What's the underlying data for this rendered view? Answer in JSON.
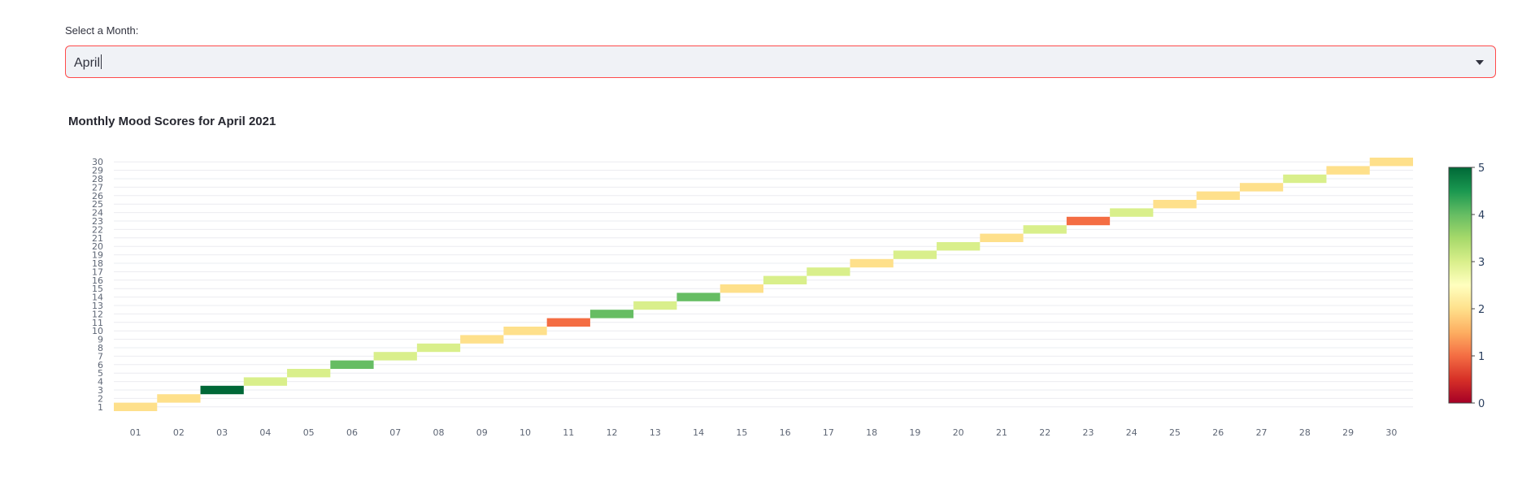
{
  "month_select": {
    "label": "Select a Month:",
    "value": "April"
  },
  "chart_data": {
    "type": "heatmap",
    "title": "Monthly Mood Scores for April 2021",
    "xlabel": "",
    "ylabel": "",
    "x_categories": [
      "01",
      "02",
      "03",
      "04",
      "05",
      "06",
      "07",
      "08",
      "09",
      "10",
      "11",
      "12",
      "13",
      "14",
      "15",
      "16",
      "17",
      "18",
      "19",
      "20",
      "21",
      "22",
      "23",
      "24",
      "25",
      "26",
      "27",
      "28",
      "29",
      "30"
    ],
    "y_categories": [
      "1",
      "2",
      "3",
      "4",
      "5",
      "6",
      "7",
      "8",
      "9",
      "10",
      "11",
      "12",
      "13",
      "14",
      "15",
      "16",
      "17",
      "18",
      "19",
      "20",
      "21",
      "22",
      "23",
      "24",
      "25",
      "26",
      "27",
      "28",
      "29",
      "30"
    ],
    "cells": [
      {
        "x": "01",
        "y": "1",
        "value": 2
      },
      {
        "x": "02",
        "y": "2",
        "value": 2
      },
      {
        "x": "03",
        "y": "3",
        "value": 5
      },
      {
        "x": "04",
        "y": "4",
        "value": 3
      },
      {
        "x": "05",
        "y": "5",
        "value": 3
      },
      {
        "x": "06",
        "y": "6",
        "value": 4
      },
      {
        "x": "07",
        "y": "7",
        "value": 3
      },
      {
        "x": "08",
        "y": "8",
        "value": 3
      },
      {
        "x": "09",
        "y": "9",
        "value": 2
      },
      {
        "x": "10",
        "y": "10",
        "value": 2
      },
      {
        "x": "11",
        "y": "11",
        "value": 1
      },
      {
        "x": "12",
        "y": "12",
        "value": 4
      },
      {
        "x": "13",
        "y": "13",
        "value": 3
      },
      {
        "x": "14",
        "y": "14",
        "value": 4
      },
      {
        "x": "15",
        "y": "15",
        "value": 2
      },
      {
        "x": "16",
        "y": "16",
        "value": 3
      },
      {
        "x": "17",
        "y": "17",
        "value": 3
      },
      {
        "x": "18",
        "y": "18",
        "value": 2
      },
      {
        "x": "19",
        "y": "19",
        "value": 3
      },
      {
        "x": "20",
        "y": "20",
        "value": 3
      },
      {
        "x": "21",
        "y": "21",
        "value": 2
      },
      {
        "x": "22",
        "y": "22",
        "value": 3
      },
      {
        "x": "23",
        "y": "23",
        "value": 1
      },
      {
        "x": "24",
        "y": "24",
        "value": 3
      },
      {
        "x": "25",
        "y": "25",
        "value": 2
      },
      {
        "x": "26",
        "y": "26",
        "value": 2
      },
      {
        "x": "27",
        "y": "27",
        "value": 2
      },
      {
        "x": "28",
        "y": "28",
        "value": 3
      },
      {
        "x": "29",
        "y": "29",
        "value": 2
      },
      {
        "x": "30",
        "y": "30",
        "value": 2
      }
    ],
    "colorscale": "RdYlGn",
    "zmin": 0,
    "zmax": 5,
    "colorbar_ticks": [
      0,
      1,
      2,
      3,
      4,
      5
    ],
    "grid": true
  }
}
